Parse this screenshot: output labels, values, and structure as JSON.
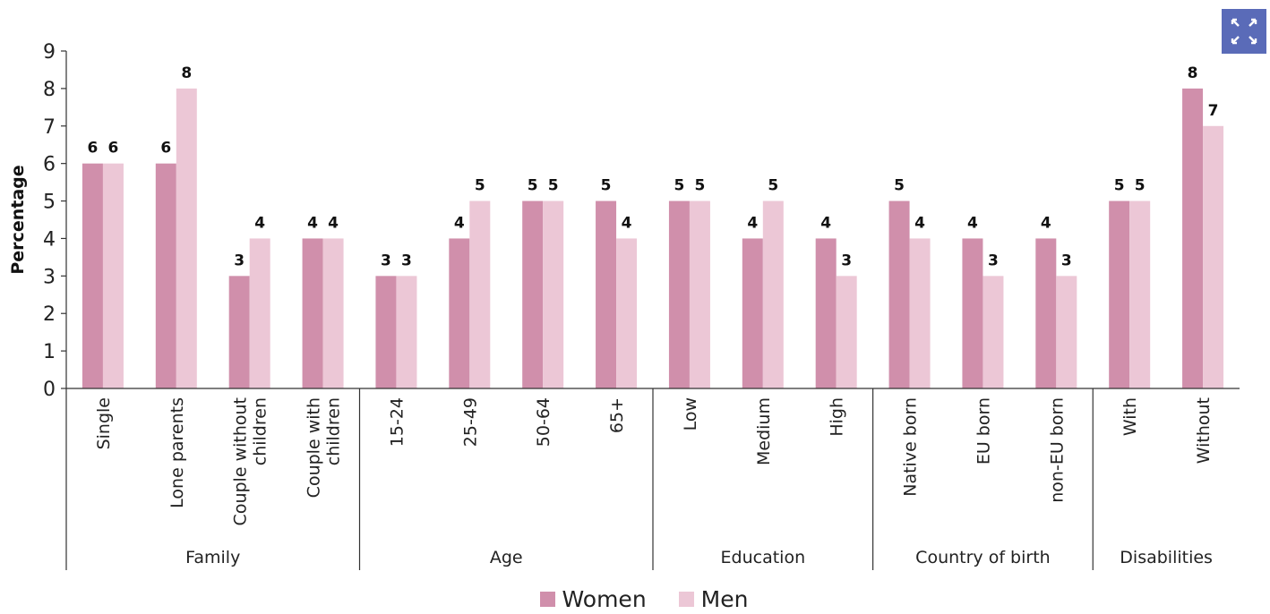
{
  "chart_data": {
    "type": "bar",
    "ylabel": "Percentage",
    "ylim": [
      0,
      9
    ],
    "yticks": [
      0,
      1,
      2,
      3,
      4,
      5,
      6,
      7,
      8,
      9
    ],
    "grid": false,
    "categories": [
      "Single",
      "Lone parents",
      "Couple without children",
      "Couple with children",
      "15-24",
      "25-49",
      "50-64",
      "65+",
      "Low",
      "Medium",
      "High",
      "Native born",
      "EU born",
      "non-EU born",
      "With",
      "Without"
    ],
    "category_lines": [
      [
        "Single"
      ],
      [
        "Lone parents"
      ],
      [
        "Couple without",
        "children"
      ],
      [
        "Couple with",
        "children"
      ],
      [
        "15-24"
      ],
      [
        "25-49"
      ],
      [
        "50-64"
      ],
      [
        "65+"
      ],
      [
        "Low"
      ],
      [
        "Medium"
      ],
      [
        "High"
      ],
      [
        "Native born"
      ],
      [
        "EU born"
      ],
      [
        "non-EU born"
      ],
      [
        "With"
      ],
      [
        "Without"
      ]
    ],
    "groups": [
      {
        "label": "Family",
        "count": 4
      },
      {
        "label": "Age",
        "count": 4
      },
      {
        "label": "Education",
        "count": 3
      },
      {
        "label": "Country of birth",
        "count": 3
      },
      {
        "label": "Disabilities",
        "count": 2
      }
    ],
    "series": [
      {
        "name": "Women",
        "color": "#d08fab",
        "values": [
          6,
          6,
          3,
          4,
          3,
          4,
          5,
          5,
          5,
          4,
          4,
          5,
          4,
          4,
          5,
          8
        ]
      },
      {
        "name": "Men",
        "color": "#ecc7d6",
        "values": [
          6,
          8,
          4,
          4,
          3,
          5,
          5,
          4,
          5,
          5,
          3,
          4,
          3,
          3,
          5,
          7
        ]
      }
    ],
    "data_labels": true,
    "legend_position": "bottom-center"
  },
  "toolbar": {
    "expand_icon": "expand-icon",
    "expand_color": "#5a6bb8"
  }
}
